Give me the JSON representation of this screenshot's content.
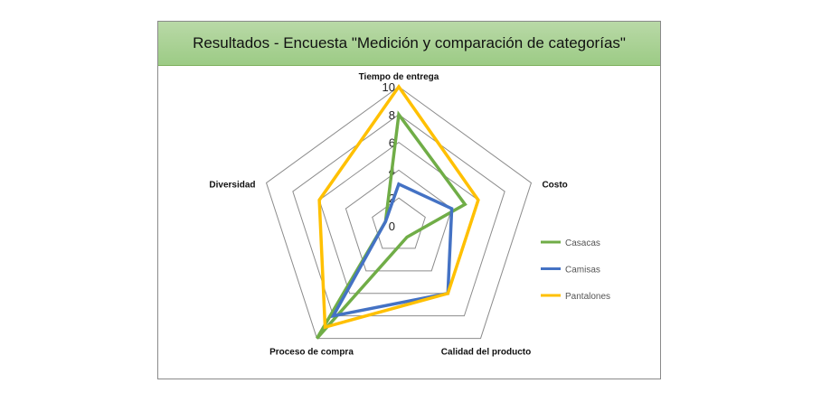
{
  "chart_data": {
    "type": "radar",
    "title": "Resultados - Encuesta \"Medición y comparación de categorías\"",
    "categories": [
      "Tiempo de entrega",
      "Costo",
      "Calidad del producto",
      "Proceso de compra",
      "Diversidad"
    ],
    "rlim": [
      0,
      10
    ],
    "ticks": [
      "0",
      "2",
      "4",
      "6",
      "8",
      "10"
    ],
    "legend_position": "right",
    "series": [
      {
        "name": "Casacas",
        "color": "#70ad47",
        "values": [
          8,
          5,
          1,
          10,
          1
        ]
      },
      {
        "name": "Camisas",
        "color": "#4472c4",
        "values": [
          3,
          4,
          6,
          8,
          1
        ]
      },
      {
        "name": "Pantalones",
        "color": "#ffc000",
        "values": [
          10,
          6,
          6,
          9,
          6
        ]
      }
    ]
  }
}
